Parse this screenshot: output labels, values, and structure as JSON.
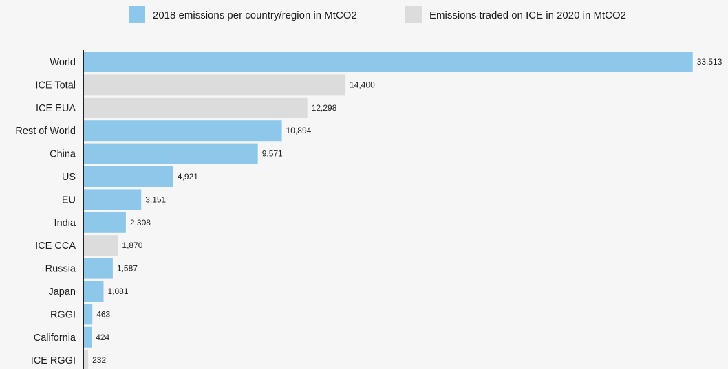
{
  "chart_data": {
    "type": "bar",
    "orientation": "horizontal",
    "title": "",
    "xlabel": "",
    "ylabel": "",
    "xlim": [
      0,
      33600
    ],
    "grid": false,
    "legend_placement": "top-center",
    "series": [
      {
        "name": "2018 emissions per country/region in MtCO2",
        "color": "#8dc8eb"
      },
      {
        "name": "Emissions traded on ICE in 2020 in MtCO2",
        "color": "#dcdcdc"
      }
    ],
    "bars": [
      {
        "category": "World",
        "value": 33513,
        "label": "33,513",
        "series": 0
      },
      {
        "category": "ICE Total",
        "value": 14400,
        "label": "14,400",
        "series": 1
      },
      {
        "category": "ICE EUA",
        "value": 12298,
        "label": "12,298",
        "series": 1
      },
      {
        "category": "Rest of World",
        "value": 10894,
        "label": "10,894",
        "series": 0
      },
      {
        "category": "China",
        "value": 9571,
        "label": "9,571",
        "series": 0
      },
      {
        "category": "US",
        "value": 4921,
        "label": "4,921",
        "series": 0
      },
      {
        "category": "EU",
        "value": 3151,
        "label": "3,151",
        "series": 0
      },
      {
        "category": "India",
        "value": 2308,
        "label": "2,308",
        "series": 0
      },
      {
        "category": "ICE CCA",
        "value": 1870,
        "label": "1,870",
        "series": 1
      },
      {
        "category": "Russia",
        "value": 1587,
        "label": "1,587",
        "series": 0
      },
      {
        "category": "Japan",
        "value": 1081,
        "label": "1,081",
        "series": 0
      },
      {
        "category": "RGGI",
        "value": 463,
        "label": "463",
        "series": 0
      },
      {
        "category": "California",
        "value": 424,
        "label": "424",
        "series": 0
      },
      {
        "category": "ICE RGGI",
        "value": 232,
        "label": "232",
        "series": 1
      }
    ]
  }
}
